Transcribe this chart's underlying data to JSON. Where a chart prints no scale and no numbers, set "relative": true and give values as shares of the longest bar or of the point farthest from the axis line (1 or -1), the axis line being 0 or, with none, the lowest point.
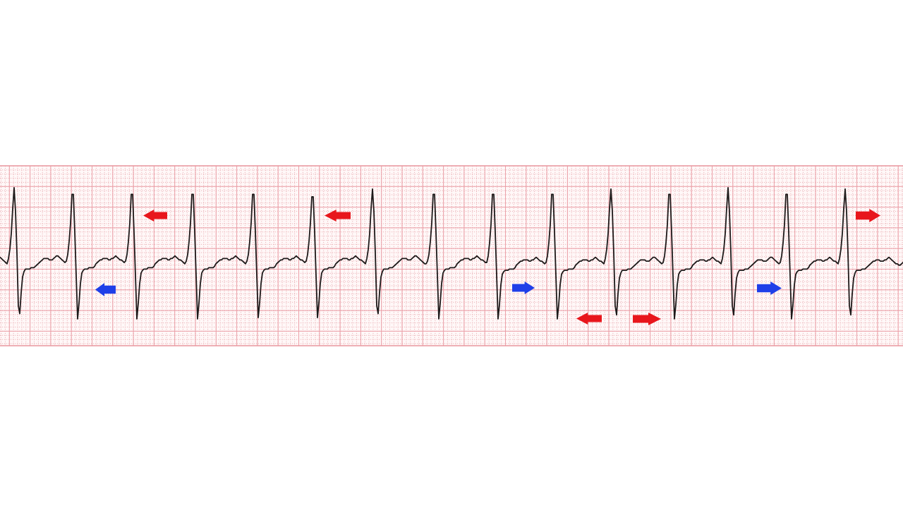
{
  "chart_data": {
    "type": "line",
    "relative": true,
    "categories": [
      null,
      null,
      null,
      null,
      null,
      null,
      null,
      null,
      null,
      null,
      null,
      null,
      null,
      null,
      null,
      null,
      null,
      null,
      null,
      null,
      null,
      null,
      null,
      null,
      null,
      null,
      null,
      null,
      null,
      null,
      null,
      null,
      null,
      null,
      null,
      null,
      null,
      null,
      null,
      null,
      null,
      null,
      null,
      null,
      null,
      null,
      null,
      null,
      null,
      null,
      null,
      null,
      null,
      null,
      null,
      null,
      null,
      null,
      null,
      null,
      null,
      null,
      null,
      null,
      null,
      null,
      null,
      null,
      null,
      null,
      null,
      null,
      null,
      null,
      null,
      null,
      null,
      null,
      null,
      null,
      null,
      null,
      null,
      null,
      null,
      null,
      null,
      null,
      null,
      null,
      null,
      null,
      null,
      null,
      null,
      null,
      null,
      null,
      null,
      null,
      null,
      null,
      null,
      null,
      null,
      null,
      null,
      null,
      null,
      null,
      null,
      null,
      null,
      null,
      null,
      null,
      null,
      null,
      null,
      null,
      null,
      null,
      null,
      null,
      null,
      null,
      null,
      null,
      null,
      null,
      null,
      null,
      null,
      null,
      null,
      null,
      null,
      null,
      null,
      null,
      null,
      null,
      null,
      null,
      null,
      null,
      null,
      null,
      null,
      null,
      null,
      null,
      null,
      null,
      null,
      null,
      null,
      null,
      null,
      null,
      null,
      null,
      null,
      null,
      null,
      null,
      null,
      null,
      null,
      null,
      null,
      null,
      null,
      null,
      null,
      null,
      null,
      null,
      null,
      null,
      null,
      null,
      null,
      null,
      null,
      null,
      null,
      null,
      null,
      null,
      null,
      null,
      null,
      null,
      null,
      null,
      null,
      null,
      null,
      null,
      null,
      null,
      null,
      null,
      null,
      null,
      null,
      null,
      null,
      null,
      null,
      null,
      null,
      null,
      null,
      null,
      null,
      null,
      null,
      null,
      null,
      null,
      null,
      null,
      null,
      null,
      null,
      null,
      null,
      null,
      null,
      null,
      null,
      null,
      null,
      null,
      null,
      null,
      null,
      null,
      null,
      null,
      null,
      null,
      null,
      null,
      null,
      null,
      null,
      null,
      null,
      null,
      null,
      null,
      null,
      null,
      null,
      null,
      null,
      null,
      null,
      null,
      null,
      null,
      null,
      null,
      null,
      null,
      null,
      null,
      null,
      null,
      null,
      null,
      null,
      null,
      null,
      null,
      null,
      null,
      null,
      null,
      null,
      null,
      null,
      null,
      null,
      null,
      null,
      null,
      null,
      null,
      null,
      null,
      null,
      null,
      null,
      null,
      null,
      null,
      null,
      null,
      null,
      null,
      null,
      null,
      null,
      null,
      null,
      null,
      null,
      null,
      null,
      null,
      null,
      null,
      null,
      null,
      null,
      null,
      null,
      null,
      null,
      null,
      null,
      null,
      null,
      null,
      null,
      null,
      null,
      null,
      null,
      null,
      null,
      null,
      null,
      null,
      null,
      null,
      null,
      null,
      null,
      null,
      null,
      null,
      null,
      null,
      null,
      null,
      null,
      null,
      null,
      null,
      null,
      null,
      null,
      null,
      null,
      null,
      null,
      null,
      null,
      null,
      null,
      null,
      null,
      null,
      null,
      null,
      null,
      null,
      null,
      null,
      null,
      null,
      null,
      null,
      null,
      null,
      null,
      null,
      null,
      null,
      null,
      null,
      null,
      null,
      null,
      null,
      null,
      null,
      null,
      null,
      null,
      null,
      null,
      null,
      null,
      null,
      null,
      null,
      null,
      null,
      null,
      null,
      null,
      null,
      null,
      null,
      null,
      null,
      null,
      null,
      null,
      null,
      null,
      null,
      null,
      null,
      null,
      null,
      null,
      null,
      null,
      null,
      null,
      null,
      null,
      null,
      null,
      null,
      null,
      null,
      null,
      null,
      null,
      null,
      null,
      null,
      null,
      null,
      null,
      null,
      null,
      null,
      null,
      null,
      null,
      null,
      null,
      null,
      null,
      null,
      null,
      null,
      null,
      null,
      null,
      null,
      null,
      null,
      null,
      null,
      null,
      null,
      null,
      null,
      null,
      null,
      null,
      null,
      null,
      null,
      null,
      null,
      null,
      null,
      null,
      null,
      null,
      null,
      null,
      null,
      null,
      null,
      null,
      null,
      null,
      null,
      null,
      null,
      null,
      null,
      null,
      null,
      null,
      null,
      null,
      null,
      null,
      null,
      null,
      null,
      null,
      null,
      null,
      null,
      null,
      null,
      null,
      null,
      null,
      null,
      null,
      null,
      null,
      null,
      null,
      null,
      null,
      null,
      null,
      null,
      null,
      null,
      null,
      null,
      null,
      null,
      null,
      null,
      null,
      null,
      null,
      null,
      null,
      null,
      null,
      null,
      null,
      null,
      null,
      null,
      null,
      null,
      null,
      null,
      null,
      null,
      null,
      null,
      null,
      null,
      null,
      null,
      null,
      null,
      null,
      null,
      null,
      null,
      null,
      null,
      null,
      null,
      null,
      null,
      null,
      null,
      null,
      null,
      null,
      null,
      null,
      null,
      null,
      null,
      null,
      null,
      null,
      null,
      null,
      null,
      null,
      null,
      null,
      null,
      null,
      null,
      null,
      null,
      null,
      null,
      null,
      null,
      null,
      null,
      null,
      null,
      null,
      null,
      null,
      null,
      null,
      null,
      null,
      null,
      null,
      null,
      null,
      null,
      null,
      null,
      null,
      null,
      null,
      null,
      null,
      null,
      null,
      null,
      null,
      null,
      null,
      null,
      null,
      null,
      null,
      null,
      null,
      null,
      null,
      null,
      null,
      null,
      null,
      null,
      null,
      null,
      null
    ],
    "series": [
      {
        "color": "#1e1a1a",
        "values": [
          0.47,
          0.46,
          0.45,
          0.44,
          0.43,
          0.42,
          0.46,
          0.53,
          0.65,
          0.84,
          1.0,
          0.82,
          0.5,
          0.1,
          0.04,
          0.2,
          0.32,
          0.36,
          0.38,
          0.38,
          0.38,
          0.38,
          0.39,
          0.39,
          0.39,
          0.4,
          0.41,
          0.42,
          0.43,
          0.44,
          0.45,
          0.46,
          0.46,
          0.46,
          0.46,
          0.45,
          0.45,
          0.45,
          0.46,
          0.47,
          0.48,
          0.48,
          0.47,
          0.46,
          0.45,
          0.44,
          0.43,
          0.44,
          0.49,
          0.59,
          0.73,
          0.95,
          0.95,
          0.66,
          0.33,
          0.0,
          0.12,
          0.27,
          0.35,
          0.37,
          0.38,
          0.38,
          0.38,
          0.39,
          0.39,
          0.39,
          0.39,
          0.4,
          0.42,
          0.43,
          0.44,
          0.45,
          0.45,
          0.46,
          0.46,
          0.46,
          0.46,
          0.45,
          0.45,
          0.46,
          0.46,
          0.47,
          0.48,
          0.47,
          0.46,
          0.45,
          0.45,
          0.44,
          0.43,
          0.44,
          0.49,
          0.59,
          0.73,
          0.95,
          0.95,
          0.66,
          0.33,
          0.0,
          0.12,
          0.27,
          0.35,
          0.37,
          0.38,
          0.38,
          0.38,
          0.39,
          0.39,
          0.39,
          0.39,
          0.4,
          0.42,
          0.43,
          0.44,
          0.45,
          0.45,
          0.46,
          0.46,
          0.46,
          0.46,
          0.45,
          0.45,
          0.46,
          0.46,
          0.47,
          0.48,
          0.47,
          0.46,
          0.45,
          0.45,
          0.44,
          0.43,
          0.42,
          0.44,
          0.49,
          0.59,
          0.73,
          0.95,
          0.95,
          0.66,
          0.33,
          0.0,
          0.12,
          0.27,
          0.35,
          0.37,
          0.38,
          0.38,
          0.38,
          0.39,
          0.39,
          0.39,
          0.39,
          0.4,
          0.42,
          0.43,
          0.44,
          0.45,
          0.45,
          0.46,
          0.46,
          0.46,
          0.46,
          0.45,
          0.45,
          0.46,
          0.46,
          0.47,
          0.48,
          0.47,
          0.46,
          0.45,
          0.45,
          0.44,
          0.43,
          0.42,
          0.44,
          0.49,
          0.59,
          0.73,
          0.95,
          0.95,
          0.66,
          0.33,
          0.01,
          0.12,
          0.27,
          0.35,
          0.37,
          0.38,
          0.38,
          0.38,
          0.39,
          0.39,
          0.39,
          0.39,
          0.4,
          0.42,
          0.43,
          0.44,
          0.45,
          0.45,
          0.46,
          0.46,
          0.46,
          0.46,
          0.45,
          0.45,
          0.46,
          0.46,
          0.47,
          0.48,
          0.47,
          0.46,
          0.45,
          0.45,
          0.44,
          0.43,
          0.44,
          0.49,
          0.59,
          0.73,
          0.93,
          0.93,
          0.66,
          0.33,
          0.01,
          0.12,
          0.27,
          0.35,
          0.37,
          0.38,
          0.38,
          0.38,
          0.39,
          0.39,
          0.39,
          0.39,
          0.4,
          0.42,
          0.43,
          0.44,
          0.45,
          0.45,
          0.46,
          0.46,
          0.46,
          0.46,
          0.45,
          0.45,
          0.46,
          0.46,
          0.47,
          0.48,
          0.47,
          0.46,
          0.45,
          0.45,
          0.44,
          0.43,
          0.42,
          0.46,
          0.53,
          0.65,
          0.84,
          0.99,
          0.82,
          0.5,
          0.1,
          0.04,
          0.2,
          0.32,
          0.36,
          0.38,
          0.38,
          0.38,
          0.38,
          0.39,
          0.39,
          0.39,
          0.4,
          0.41,
          0.42,
          0.43,
          0.44,
          0.45,
          0.46,
          0.46,
          0.46,
          0.46,
          0.45,
          0.45,
          0.45,
          0.46,
          0.47,
          0.48,
          0.48,
          0.47,
          0.46,
          0.45,
          0.44,
          0.43,
          0.42,
          0.42,
          0.44,
          0.49,
          0.59,
          0.73,
          0.95,
          0.95,
          0.66,
          0.33,
          0.0,
          0.12,
          0.27,
          0.35,
          0.37,
          0.38,
          0.38,
          0.38,
          0.39,
          0.39,
          0.39,
          0.39,
          0.4,
          0.42,
          0.43,
          0.44,
          0.45,
          0.45,
          0.46,
          0.46,
          0.46,
          0.46,
          0.45,
          0.45,
          0.46,
          0.46,
          0.47,
          0.48,
          0.47,
          0.46,
          0.45,
          0.45,
          0.44,
          0.43,
          0.43,
          0.48,
          0.58,
          0.72,
          0.95,
          0.95,
          0.66,
          0.33,
          0.0,
          0.11,
          0.26,
          0.34,
          0.36,
          0.37,
          0.37,
          0.37,
          0.38,
          0.38,
          0.38,
          0.38,
          0.39,
          0.41,
          0.42,
          0.43,
          0.44,
          0.44,
          0.45,
          0.45,
          0.45,
          0.45,
          0.44,
          0.44,
          0.45,
          0.45,
          0.46,
          0.47,
          0.46,
          0.45,
          0.44,
          0.44,
          0.43,
          0.42,
          0.43,
          0.48,
          0.58,
          0.72,
          0.95,
          0.95,
          0.66,
          0.33,
          0.0,
          0.11,
          0.26,
          0.34,
          0.36,
          0.37,
          0.37,
          0.37,
          0.38,
          0.38,
          0.38,
          0.38,
          0.39,
          0.41,
          0.42,
          0.43,
          0.44,
          0.44,
          0.45,
          0.45,
          0.45,
          0.45,
          0.44,
          0.44,
          0.45,
          0.45,
          0.46,
          0.47,
          0.46,
          0.45,
          0.44,
          0.44,
          0.43,
          0.42,
          0.46,
          0.53,
          0.65,
          0.84,
          0.99,
          0.82,
          0.5,
          0.1,
          0.03,
          0.19,
          0.31,
          0.35,
          0.37,
          0.37,
          0.37,
          0.37,
          0.38,
          0.38,
          0.38,
          0.39,
          0.4,
          0.41,
          0.42,
          0.43,
          0.44,
          0.45,
          0.45,
          0.45,
          0.45,
          0.44,
          0.44,
          0.44,
          0.45,
          0.46,
          0.47,
          0.47,
          0.46,
          0.45,
          0.44,
          0.43,
          0.42,
          0.43,
          0.48,
          0.58,
          0.72,
          0.95,
          0.95,
          0.66,
          0.33,
          0.0,
          0.11,
          0.26,
          0.34,
          0.36,
          0.37,
          0.37,
          0.37,
          0.38,
          0.38,
          0.38,
          0.38,
          0.39,
          0.41,
          0.42,
          0.43,
          0.44,
          0.44,
          0.45,
          0.45,
          0.45,
          0.45,
          0.44,
          0.44,
          0.45,
          0.45,
          0.46,
          0.47,
          0.46,
          0.45,
          0.44,
          0.44,
          0.43,
          0.42,
          0.46,
          0.53,
          0.65,
          0.84,
          1.0,
          0.82,
          0.5,
          0.1,
          0.03,
          0.19,
          0.31,
          0.35,
          0.37,
          0.37,
          0.37,
          0.37,
          0.38,
          0.38,
          0.38,
          0.39,
          0.4,
          0.41,
          0.42,
          0.43,
          0.44,
          0.45,
          0.45,
          0.45,
          0.45,
          0.44,
          0.44,
          0.44,
          0.45,
          0.46,
          0.47,
          0.47,
          0.46,
          0.45,
          0.44,
          0.43,
          0.42,
          0.43,
          0.48,
          0.58,
          0.72,
          0.95,
          0.95,
          0.66,
          0.33,
          0.0,
          0.11,
          0.26,
          0.34,
          0.36,
          0.37,
          0.37,
          0.37,
          0.38,
          0.38,
          0.38,
          0.38,
          0.39,
          0.41,
          0.42,
          0.43,
          0.44,
          0.44,
          0.45,
          0.45,
          0.45,
          0.45,
          0.44,
          0.44,
          0.45,
          0.45,
          0.46,
          0.47,
          0.46,
          0.45,
          0.44,
          0.44,
          0.43,
          0.42,
          0.46,
          0.53,
          0.65,
          0.84,
          0.99,
          0.82,
          0.5,
          0.1,
          0.03,
          0.19,
          0.31,
          0.35,
          0.37,
          0.37,
          0.37,
          0.37,
          0.38,
          0.38,
          0.38,
          0.39,
          0.4,
          0.41,
          0.42,
          0.43,
          0.44,
          0.44,
          0.45,
          0.45,
          0.45,
          0.44,
          0.44,
          0.44,
          0.45,
          0.45,
          0.46,
          0.47,
          0.46,
          0.45,
          0.44,
          0.43,
          0.42,
          0.42,
          0.41,
          0.41,
          0.42,
          0.43
        ]
      }
    ],
    "tick_labels": false,
    "grid": true,
    "marker": "none",
    "line_style": "solid"
  }
}
